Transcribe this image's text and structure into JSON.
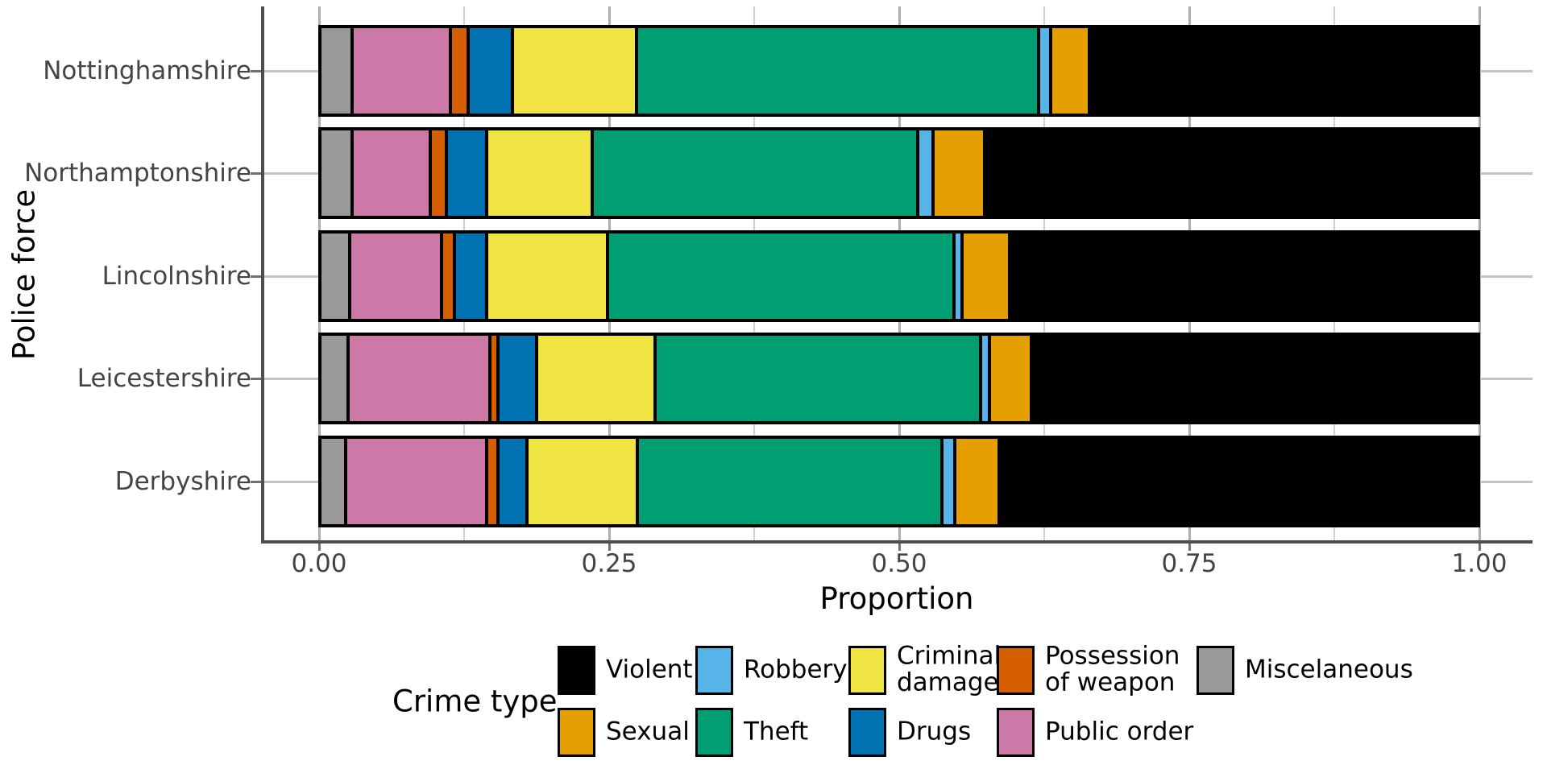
{
  "chart_data": {
    "type": "bar",
    "orientation": "horizontal",
    "stacked": true,
    "xlabel": "Proportion",
    "ylabel": "Police force",
    "xlim": [
      0,
      1
    ],
    "x_ticks": [
      "0.00",
      "0.25",
      "0.50",
      "0.75",
      "1.00"
    ],
    "x_tick_values": [
      0,
      0.25,
      0.5,
      0.75,
      1.0
    ],
    "grid_minor_step": 0.125,
    "categories": [
      "Nottinghamshire",
      "Northamptonshire",
      "Lincolnshire",
      "Leicestershire",
      "Derbyshire"
    ],
    "stack_order_left_to_right": [
      "Miscelaneous",
      "Public order",
      "Possession of weapon",
      "Drugs",
      "Criminal damage",
      "Theft",
      "Robbery",
      "Sexual",
      "Violent"
    ],
    "series": [
      {
        "name": "Miscelaneous",
        "color": "#999999",
        "values": [
          0.028,
          0.028,
          0.026,
          0.024,
          0.022
        ]
      },
      {
        "name": "Public order",
        "color": "#cc79a7",
        "values": [
          0.085,
          0.067,
          0.079,
          0.123,
          0.122
        ]
      },
      {
        "name": "Possession of weapon",
        "color": "#d55e00",
        "values": [
          0.015,
          0.014,
          0.011,
          0.007,
          0.01
        ]
      },
      {
        "name": "Drugs",
        "color": "#0072b2",
        "values": [
          0.038,
          0.035,
          0.028,
          0.033,
          0.025
        ]
      },
      {
        "name": "Criminal damage",
        "color": "#f0e442",
        "values": [
          0.107,
          0.091,
          0.104,
          0.102,
          0.095
        ]
      },
      {
        "name": "Theft",
        "color": "#009e73",
        "values": [
          0.347,
          0.281,
          0.299,
          0.281,
          0.263
        ]
      },
      {
        "name": "Robbery",
        "color": "#56b4e9",
        "values": [
          0.011,
          0.013,
          0.007,
          0.008,
          0.011
        ]
      },
      {
        "name": "Sexual",
        "color": "#e69f00",
        "values": [
          0.033,
          0.045,
          0.041,
          0.036,
          0.038
        ]
      },
      {
        "name": "Violent",
        "color": "#000000",
        "values": [
          0.336,
          0.426,
          0.405,
          0.386,
          0.414
        ]
      }
    ],
    "legend": {
      "title": "Crime type",
      "position": "bottom",
      "rows": [
        [
          "Violent",
          "Robbery",
          "Criminal damage",
          "Possession of weapon",
          "Miscelaneous"
        ],
        [
          "Sexual",
          "Theft",
          "Drugs",
          "Public order"
        ]
      ],
      "label_lines": {
        "Violent": [
          "Violent"
        ],
        "Robbery": [
          "Robbery"
        ],
        "Criminal damage": [
          "Criminal",
          "damage"
        ],
        "Possession of weapon": [
          "Possession",
          "of weapon"
        ],
        "Miscelaneous": [
          "Miscelaneous"
        ],
        "Sexual": [
          "Sexual"
        ],
        "Theft": [
          "Theft"
        ],
        "Drugs": [
          "Drugs"
        ],
        "Public order": [
          "Public order"
        ]
      }
    }
  }
}
